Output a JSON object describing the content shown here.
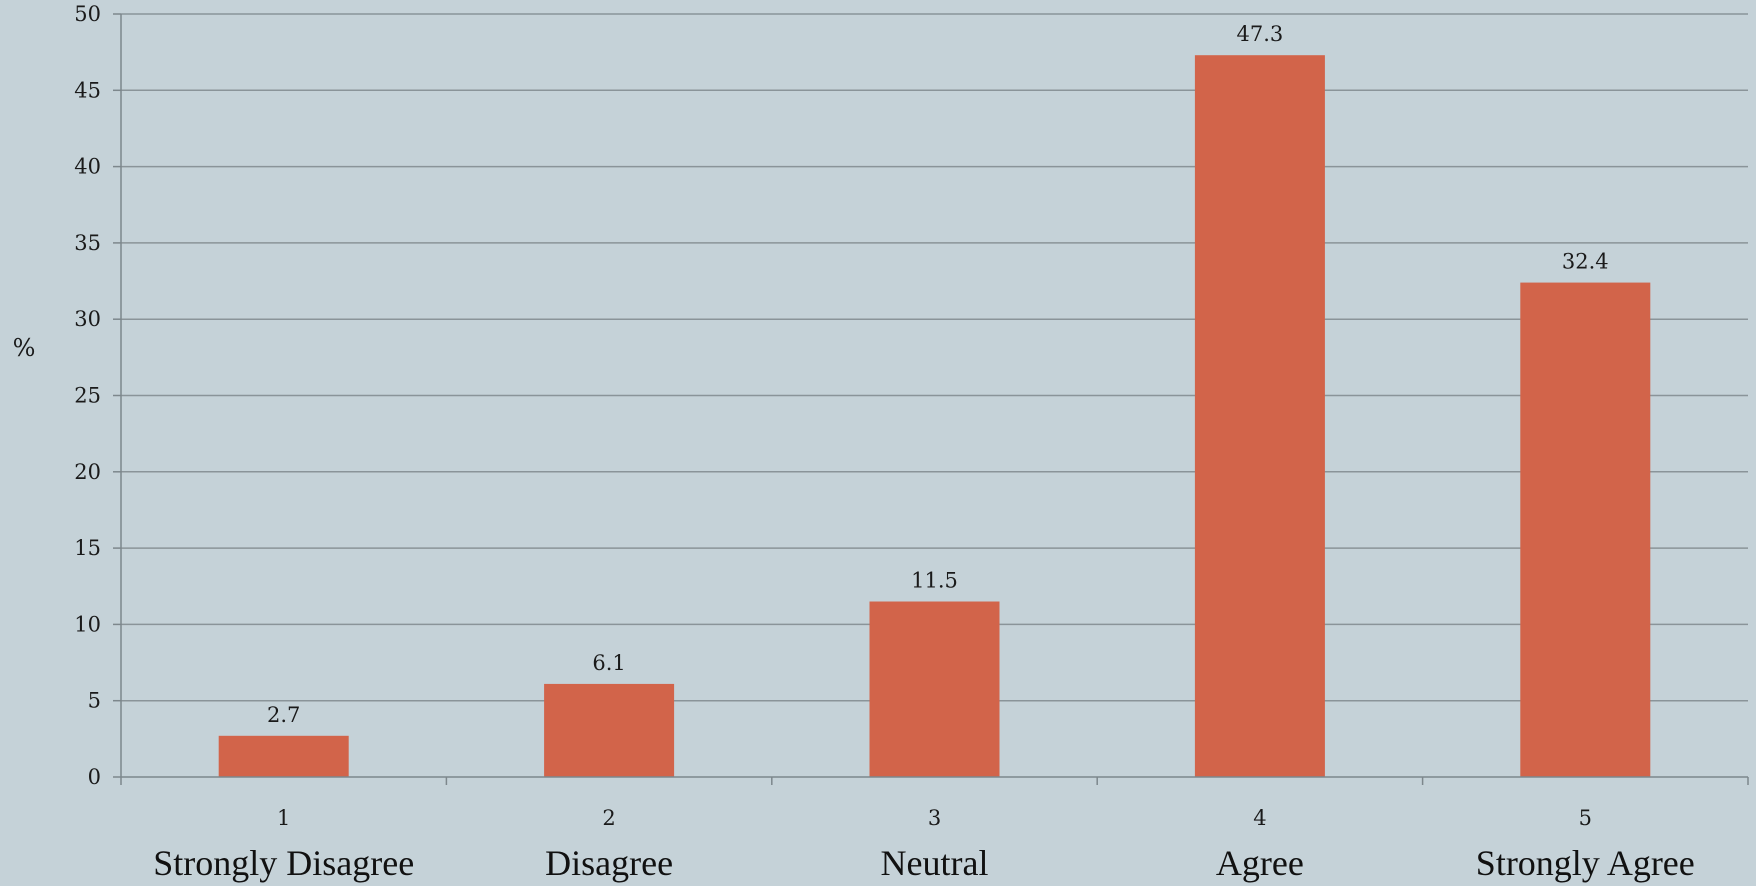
{
  "chart_data": {
    "type": "bar",
    "categories": [
      "1",
      "2",
      "3",
      "4",
      "5"
    ],
    "category_names": [
      "Strongly Disagree",
      "Disagree",
      "Neutral",
      "Agree",
      "Strongly Agree"
    ],
    "values": [
      2.7,
      6.1,
      11.5,
      47.3,
      32.4
    ],
    "data_labels": [
      "2.7",
      "6.1",
      "11.5",
      "47.3",
      "32.4"
    ],
    "ylabel": "%",
    "ylim": [
      0,
      50
    ],
    "yticks": [
      0,
      5,
      10,
      15,
      20,
      25,
      30,
      35,
      40,
      45,
      50
    ],
    "grid": true,
    "legend": "none",
    "colors": {
      "bar": "#d2644a",
      "grid": "#8a9499",
      "axis": "#7d878c",
      "background": "#c5d2d8"
    }
  }
}
